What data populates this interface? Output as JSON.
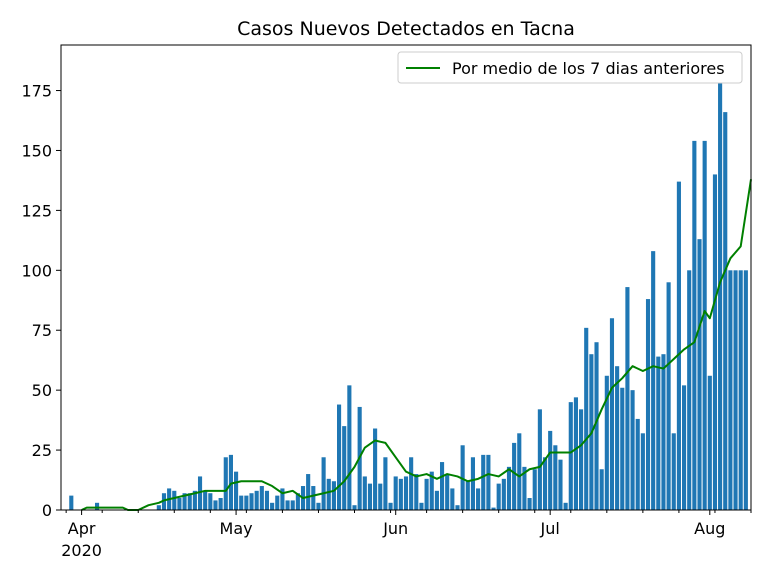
{
  "chart_data": {
    "type": "bar",
    "title": "Casos Nuevos Detectados en Tacna",
    "xlabel": "",
    "ylabel": "",
    "x_start": "2020-03-28",
    "x_end": "2020-08-09",
    "ylim": [
      0,
      194
    ],
    "y_ticks": [
      0,
      25,
      50,
      75,
      100,
      125,
      150,
      175
    ],
    "x_ticks": [
      {
        "date": "2020-04-01",
        "label": "Apr",
        "sublabel": "2020"
      },
      {
        "date": "2020-05-01",
        "label": "May",
        "sublabel": ""
      },
      {
        "date": "2020-06-01",
        "label": "Jun",
        "sublabel": ""
      },
      {
        "date": "2020-07-01",
        "label": "Jul",
        "sublabel": ""
      },
      {
        "date": "2020-08-01",
        "label": "Aug",
        "sublabel": ""
      }
    ],
    "legend": {
      "position": "upper right",
      "label": "Por medio de los 7 dias anteriores"
    },
    "bar_color": "#1f77b4",
    "line_color": "#008000",
    "bars": {
      "dates": [
        "2020-03-30",
        "2020-04-04",
        "2020-04-16",
        "2020-04-17",
        "2020-04-18",
        "2020-04-19",
        "2020-04-20",
        "2020-04-21",
        "2020-04-22",
        "2020-04-23",
        "2020-04-24",
        "2020-04-25",
        "2020-04-26",
        "2020-04-27",
        "2020-04-28",
        "2020-04-29",
        "2020-04-30",
        "2020-05-01",
        "2020-05-02",
        "2020-05-03",
        "2020-05-04",
        "2020-05-05",
        "2020-05-06",
        "2020-05-07",
        "2020-05-08",
        "2020-05-09",
        "2020-05-10",
        "2020-05-11",
        "2020-05-12",
        "2020-05-13",
        "2020-05-14",
        "2020-05-15",
        "2020-05-16",
        "2020-05-17",
        "2020-05-18",
        "2020-05-19",
        "2020-05-20",
        "2020-05-21",
        "2020-05-22",
        "2020-05-23",
        "2020-05-24",
        "2020-05-25",
        "2020-05-26",
        "2020-05-27",
        "2020-05-28",
        "2020-05-29",
        "2020-05-30",
        "2020-05-31",
        "2020-06-01",
        "2020-06-02",
        "2020-06-03",
        "2020-06-04",
        "2020-06-05",
        "2020-06-06",
        "2020-06-07",
        "2020-06-08",
        "2020-06-09",
        "2020-06-10",
        "2020-06-11",
        "2020-06-12",
        "2020-06-13",
        "2020-06-14",
        "2020-06-15",
        "2020-06-16",
        "2020-06-17",
        "2020-06-18",
        "2020-06-19",
        "2020-06-20",
        "2020-06-21",
        "2020-06-22",
        "2020-06-23",
        "2020-06-24",
        "2020-06-25",
        "2020-06-26",
        "2020-06-27",
        "2020-06-28",
        "2020-06-29",
        "2020-06-30",
        "2020-07-01",
        "2020-07-02",
        "2020-07-03",
        "2020-07-04",
        "2020-07-05",
        "2020-07-06",
        "2020-07-07",
        "2020-07-08",
        "2020-07-09",
        "2020-07-10",
        "2020-07-11",
        "2020-07-12",
        "2020-07-13",
        "2020-07-14",
        "2020-07-15",
        "2020-07-16",
        "2020-07-17",
        "2020-07-18",
        "2020-07-19",
        "2020-07-20",
        "2020-07-21",
        "2020-07-22",
        "2020-07-23",
        "2020-07-24",
        "2020-07-25",
        "2020-07-26",
        "2020-07-27",
        "2020-07-28",
        "2020-07-29",
        "2020-07-30",
        "2020-07-31",
        "2020-08-01",
        "2020-08-02",
        "2020-08-03",
        "2020-08-04",
        "2020-08-05",
        "2020-08-06",
        "2020-08-07",
        "2020-08-08"
      ],
      "values": [
        6,
        3,
        2,
        7,
        9,
        8,
        5,
        7,
        7,
        8,
        14,
        8,
        7,
        4,
        5,
        22,
        23,
        16,
        6,
        6,
        7,
        8,
        10,
        8,
        3,
        6,
        9,
        4,
        4,
        7,
        10,
        15,
        10,
        3,
        22,
        13,
        12,
        44,
        35,
        52,
        2,
        43,
        14,
        11,
        34,
        11,
        22,
        3,
        14,
        13,
        14,
        22,
        15,
        3,
        13,
        16,
        8,
        20,
        15,
        9,
        2,
        27,
        12,
        22,
        9,
        23,
        23,
        1,
        11,
        13,
        18,
        28,
        32,
        18,
        5,
        17,
        42,
        22,
        33,
        27,
        21,
        3,
        45,
        47,
        42,
        76,
        65,
        70,
        17,
        56,
        80,
        60,
        51,
        93,
        50,
        38,
        32,
        88,
        108,
        64,
        65,
        95,
        32,
        137,
        52,
        100,
        154,
        113,
        154,
        56,
        140,
        185,
        166,
        100,
        100,
        100,
        100
      ]
    },
    "series": [
      {
        "name": "Por medio de los 7 dias anteriores",
        "x": [
          "2020-04-01",
          "2020-04-02",
          "2020-04-09",
          "2020-04-10",
          "2020-04-12",
          "2020-04-14",
          "2020-04-16",
          "2020-04-17",
          "2020-04-19",
          "2020-04-21",
          "2020-04-23",
          "2020-04-25",
          "2020-04-27",
          "2020-04-29",
          "2020-04-30",
          "2020-05-02",
          "2020-05-04",
          "2020-05-06",
          "2020-05-08",
          "2020-05-10",
          "2020-05-12",
          "2020-05-14",
          "2020-05-16",
          "2020-05-18",
          "2020-05-20",
          "2020-05-22",
          "2020-05-24",
          "2020-05-26",
          "2020-05-28",
          "2020-05-30",
          "2020-06-01",
          "2020-06-03",
          "2020-06-05",
          "2020-06-07",
          "2020-06-09",
          "2020-06-11",
          "2020-06-13",
          "2020-06-15",
          "2020-06-17",
          "2020-06-19",
          "2020-06-21",
          "2020-06-23",
          "2020-06-25",
          "2020-06-27",
          "2020-06-29",
          "2020-07-01",
          "2020-07-03",
          "2020-07-05",
          "2020-07-07",
          "2020-07-09",
          "2020-07-11",
          "2020-07-13",
          "2020-07-15",
          "2020-07-17",
          "2020-07-19",
          "2020-07-21",
          "2020-07-23",
          "2020-07-25",
          "2020-07-27",
          "2020-07-29",
          "2020-07-31",
          "2020-08-01",
          "2020-08-03",
          "2020-08-05",
          "2020-08-07",
          "2020-08-09"
        ],
        "y": [
          0,
          1,
          1,
          0,
          0,
          2,
          3,
          4,
          5,
          6,
          7,
          8,
          8,
          8,
          11,
          12,
          12,
          12,
          10,
          7,
          8,
          5,
          6,
          7,
          8,
          12,
          18,
          26,
          29,
          28,
          22,
          16,
          14,
          15,
          13,
          15,
          14,
          12,
          13,
          15,
          14,
          17,
          14,
          17,
          18,
          24,
          24,
          24,
          27,
          32,
          42,
          51,
          55,
          60,
          58,
          60,
          59,
          63,
          67,
          70,
          83,
          80,
          95,
          105,
          110,
          138
        ]
      }
    ]
  }
}
